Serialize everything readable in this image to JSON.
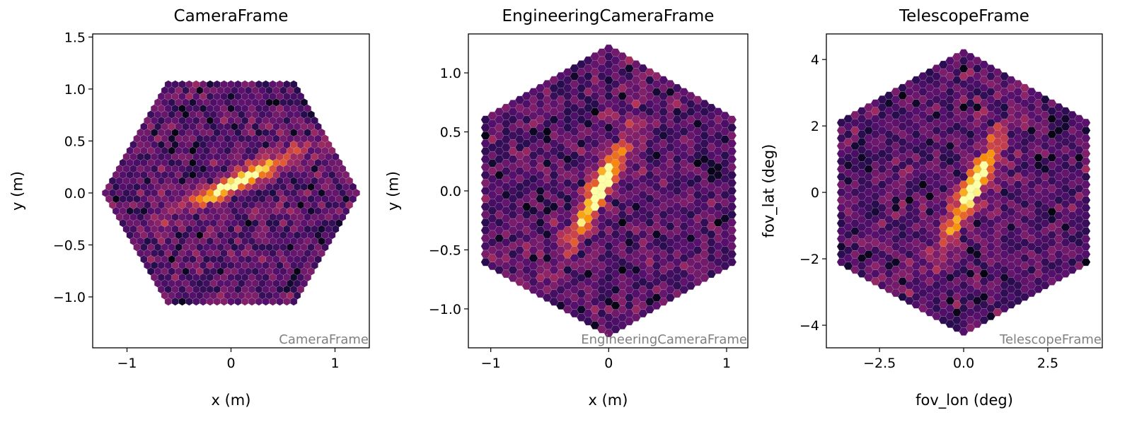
{
  "chart_data": [
    {
      "type": "heatmap",
      "subtype": "hexagonal camera image",
      "colormap": "inferno",
      "title": "CameraFrame",
      "watermark": "CameraFrame",
      "xlabel": "x  (m)",
      "ylabel": "y  (m)",
      "xlim": [
        -1.33,
        1.33
      ],
      "ylim": [
        -1.49,
        1.53
      ],
      "xticks": [
        -1,
        0,
        1
      ],
      "xtick_labels": [
        "−1",
        "0",
        "1"
      ],
      "yticks": [
        -1.0,
        -0.5,
        0.0,
        0.5,
        1.0,
        1.5
      ],
      "ytick_labels": [
        "−1.0",
        "−0.5",
        "0.0",
        "0.5",
        "1.0",
        "1.5"
      ],
      "pixel_pitch": 0.067,
      "rings": 18,
      "orientation": "pointy",
      "shower": {
        "center": [
          0.05,
          0.1
        ],
        "angle_deg": 27,
        "length_sigma": 0.3,
        "width_sigma": 0.045,
        "amplitude": 0.85
      }
    },
    {
      "type": "heatmap",
      "subtype": "hexagonal camera image",
      "colormap": "inferno",
      "title": "EngineeringCameraFrame",
      "watermark": "EngineeringCameraFrame",
      "xlabel": "x  (m)",
      "ylabel": "y  (m)",
      "xlim": [
        -1.19,
        1.18
      ],
      "ylim": [
        -1.33,
        1.33
      ],
      "xticks": [
        -1,
        0,
        1
      ],
      "xtick_labels": [
        "−1",
        "0",
        "1"
      ],
      "yticks": [
        -1.0,
        -0.5,
        0.0,
        0.5,
        1.0
      ],
      "ytick_labels": [
        "−1.0",
        "−0.5",
        "0.0",
        "0.5",
        "1.0"
      ],
      "pixel_pitch": 0.067,
      "rings": 18,
      "orientation": "flat",
      "shower": {
        "center": [
          -0.08,
          0.0
        ],
        "angle_deg": 62,
        "length_sigma": 0.28,
        "width_sigma": 0.045,
        "amplitude": 0.85
      }
    },
    {
      "type": "heatmap",
      "subtype": "hexagonal camera image",
      "colormap": "inferno",
      "title": "TelescopeFrame",
      "watermark": "TelescopeFrame",
      "xlabel": "fov_lon  (deg)",
      "ylabel": "fov_lat  (deg)",
      "xlim": [
        -4.08,
        4.12
      ],
      "ylim": [
        -4.68,
        4.77
      ],
      "xticks": [
        -2.5,
        0.0,
        2.5
      ],
      "xtick_labels": [
        "−2.5",
        "0.0",
        "2.5"
      ],
      "yticks": [
        -4,
        -2,
        0,
        2,
        4
      ],
      "ytick_labels": [
        "−4",
        "−2",
        "0",
        "2",
        "4"
      ],
      "pixel_pitch": 0.233,
      "rings": 18,
      "orientation": "flat",
      "shower": {
        "center": [
          0.3,
          0.2
        ],
        "angle_deg": 63,
        "length_sigma": 0.95,
        "width_sigma": 0.16,
        "amplitude": 0.85
      }
    }
  ]
}
